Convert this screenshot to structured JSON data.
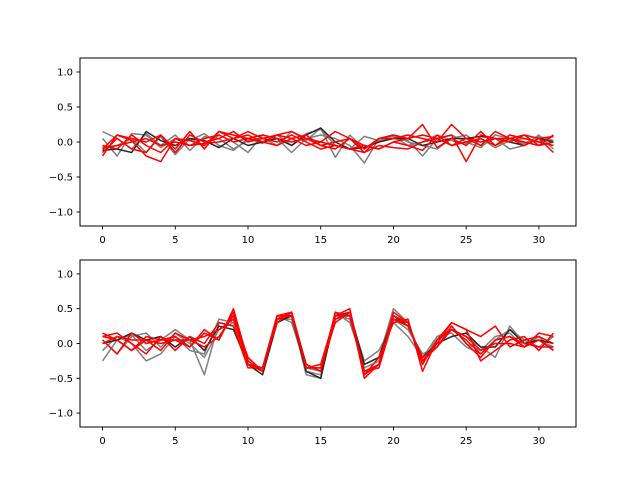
{
  "chart_data": [
    {
      "type": "line",
      "title": "",
      "xlabel": "",
      "ylabel": "",
      "xlim": [
        -1.55,
        32.55
      ],
      "ylim": [
        -1.2,
        1.2
      ],
      "xticks": [
        0,
        5,
        10,
        15,
        20,
        25,
        30
      ],
      "yticks": [
        -1.0,
        -0.5,
        0.0,
        0.5,
        1.0
      ],
      "xtick_labels": [
        "0",
        "5",
        "10",
        "15",
        "20",
        "25",
        "30"
      ],
      "ytick_labels": [
        "−1.0",
        "−0.5",
        "0.0",
        "0.5",
        "1.0"
      ],
      "grid": false,
      "series": [
        {
          "color": "#7f7f7f",
          "values": [
            0.15,
            0.05,
            -0.1,
            0.12,
            -0.05,
            0.1,
            -0.12,
            0.08,
            0.05,
            -0.1,
            0.02,
            0.06,
            -0.05,
            0.15,
            0.02,
            0.2,
            -0.22,
            0.1,
            -0.1,
            0.05,
            0.08,
            -0.05,
            0.0,
            0.1,
            0.02,
            -0.03,
            0.05,
            -0.08,
            0.02,
            0.05,
            0.0,
            0.08
          ]
        },
        {
          "color": "#7f7f7f",
          "values": [
            0.05,
            -0.2,
            0.12,
            0.1,
            -0.08,
            0.05,
            0.02,
            0.12,
            -0.05,
            -0.12,
            0.05,
            -0.02,
            0.1,
            -0.05,
            0.12,
            0.18,
            -0.05,
            -0.1,
            0.08,
            0.02,
            0.05,
            0.02,
            -0.2,
            0.05,
            0.1,
            0.0,
            -0.08,
            0.1,
            0.05,
            -0.02,
            0.08,
            0.02
          ]
        },
        {
          "color": "#7f7f7f",
          "values": [
            -0.1,
            -0.05,
            0.05,
            -0.15,
            0.08,
            -0.18,
            0.05,
            -0.05,
            0.1,
            0.0,
            -0.15,
            0.1,
            0.05,
            -0.15,
            0.05,
            0.1,
            0.05,
            -0.05,
            -0.3,
            0.05,
            0.1,
            0.0,
            -0.05,
            -0.1,
            0.05,
            0.1,
            -0.05,
            0.05,
            -0.1,
            -0.05,
            0.1,
            -0.1
          ]
        },
        {
          "color": "#262626",
          "values": [
            -0.12,
            -0.1,
            -0.15,
            0.15,
            0.02,
            -0.05,
            0.05,
            0.02,
            -0.08,
            0.05,
            -0.05,
            0.0,
            0.05,
            -0.05,
            0.1,
            0.2,
            0.0,
            -0.1,
            -0.08,
            0.0,
            0.05,
            0.05,
            -0.05,
            0.0,
            0.05,
            0.05,
            0.08,
            0.05,
            0.0,
            -0.05,
            0.05,
            0.0
          ]
        },
        {
          "color": "#ff0000",
          "values": [
            -0.2,
            0.1,
            0.02,
            -0.2,
            -0.28,
            0.05,
            0.02,
            -0.05,
            0.15,
            0.1,
            0.05,
            0.0,
            0.1,
            0.15,
            0.05,
            -0.05,
            -0.1,
            0.05,
            -0.15,
            0.05,
            0.1,
            0.05,
            0.25,
            -0.08,
            0.05,
            -0.05,
            0.15,
            -0.05,
            0.1,
            0.05,
            0.0,
            -0.05
          ]
        },
        {
          "color": "#ff0000",
          "values": [
            -0.15,
            0.05,
            -0.1,
            -0.15,
            0.1,
            -0.15,
            0.1,
            0.0,
            0.05,
            0.15,
            0.0,
            0.05,
            0.1,
            0.05,
            -0.05,
            0.0,
            0.15,
            0.05,
            -0.1,
            0.05,
            0.05,
            0.1,
            0.05,
            0.0,
            0.25,
            0.05,
            -0.05,
            0.15,
            0.05,
            0.1,
            -0.05,
            0.1
          ]
        },
        {
          "color": "#ff0000",
          "values": [
            -0.1,
            0.1,
            0.05,
            0.0,
            0.1,
            -0.1,
            0.15,
            -0.1,
            0.15,
            0.05,
            0.1,
            0.0,
            -0.05,
            0.05,
            0.1,
            -0.05,
            0.0,
            0.05,
            -0.05,
            -0.1,
            0.0,
            0.05,
            0.1,
            0.05,
            0.1,
            -0.28,
            0.1,
            0.05,
            0.05,
            -0.05,
            0.05,
            -0.15
          ]
        },
        {
          "color": "#ff0000",
          "values": [
            -0.08,
            -0.05,
            0.0,
            0.05,
            -0.05,
            0.0,
            -0.05,
            0.05,
            0.1,
            0.0,
            0.05,
            0.1,
            0.05,
            0.0,
            0.05,
            0.0,
            -0.05,
            -0.1,
            -0.05,
            -0.1,
            0.0,
            -0.05,
            -0.12,
            0.1,
            -0.05,
            0.05,
            0.0,
            0.05,
            0.0,
            0.1,
            0.05,
            0.08
          ]
        },
        {
          "color": "#ff0000",
          "values": [
            -0.05,
            -0.1,
            0.1,
            -0.05,
            -0.15,
            0.05,
            -0.05,
            -0.02,
            0.0,
            0.05,
            0.15,
            0.05,
            0.0,
            0.1,
            0.0,
            -0.1,
            -0.05,
            -0.1,
            -0.15,
            -0.05,
            -0.08,
            -0.1,
            0.0,
            0.05,
            -0.05,
            0.0,
            0.05,
            -0.05,
            0.05,
            0.0,
            -0.05,
            0.0
          ]
        }
      ]
    },
    {
      "type": "line",
      "title": "",
      "xlabel": "",
      "ylabel": "",
      "xlim": [
        -1.55,
        32.55
      ],
      "ylim": [
        -1.2,
        1.2
      ],
      "xticks": [
        0,
        5,
        10,
        15,
        20,
        25,
        30
      ],
      "yticks": [
        -1.0,
        -0.5,
        0.0,
        0.5,
        1.0
      ],
      "xtick_labels": [
        "0",
        "5",
        "10",
        "15",
        "20",
        "25",
        "30"
      ],
      "ytick_labels": [
        "−1.0",
        "−0.5",
        "0.0",
        "0.5",
        "1.0"
      ],
      "grid": false,
      "series": [
        {
          "color": "#7f7f7f",
          "values": [
            -0.25,
            0.05,
            0.12,
            -0.1,
            0.05,
            0.2,
            0.05,
            -0.45,
            0.3,
            0.25,
            -0.2,
            -0.4,
            0.3,
            0.4,
            -0.45,
            -0.5,
            0.45,
            0.3,
            -0.3,
            -0.2,
            0.5,
            0.3,
            -0.3,
            0.1,
            0.2,
            0.1,
            -0.05,
            -0.2,
            0.25,
            0.0,
            0.05,
            -0.05
          ]
        },
        {
          "color": "#7f7f7f",
          "values": [
            0.05,
            -0.15,
            0.1,
            0.15,
            -0.05,
            0.15,
            0.0,
            -0.2,
            0.2,
            0.3,
            -0.3,
            -0.35,
            0.4,
            0.3,
            -0.35,
            -0.4,
            0.4,
            0.35,
            -0.35,
            -0.25,
            0.35,
            0.2,
            -0.15,
            -0.05,
            0.25,
            0.0,
            -0.1,
            0.1,
            0.15,
            -0.05,
            0.1,
            -0.1
          ]
        },
        {
          "color": "#7f7f7f",
          "values": [
            -0.1,
            0.1,
            0.0,
            -0.25,
            -0.15,
            0.1,
            -0.1,
            -0.15,
            0.35,
            0.3,
            -0.25,
            -0.4,
            0.35,
            0.35,
            -0.4,
            -0.45,
            0.35,
            0.4,
            -0.25,
            -0.1,
            0.3,
            0.1,
            -0.2,
            0.1,
            0.15,
            -0.05,
            -0.15,
            0.05,
            0.2,
            0.05,
            -0.05,
            0.1
          ]
        },
        {
          "color": "#262626",
          "values": [
            0.0,
            0.05,
            0.15,
            0.05,
            0.1,
            -0.05,
            0.1,
            -0.1,
            0.25,
            0.2,
            -0.3,
            -0.45,
            0.3,
            0.4,
            -0.4,
            -0.5,
            0.4,
            0.45,
            -0.3,
            -0.2,
            0.4,
            0.25,
            -0.2,
            0.0,
            0.1,
            0.15,
            -0.05,
            -0.05,
            0.2,
            0.0,
            0.05,
            0.0
          ]
        },
        {
          "color": "#ff0000",
          "values": [
            0.15,
            0.05,
            -0.1,
            0.1,
            0.05,
            0.05,
            -0.05,
            0.2,
            0.05,
            0.45,
            -0.3,
            -0.4,
            0.4,
            0.45,
            -0.3,
            -0.4,
            0.35,
            0.45,
            -0.5,
            -0.3,
            0.4,
            0.3,
            -0.3,
            0.05,
            0.2,
            0.05,
            -0.15,
            0.05,
            0.1,
            -0.05,
            0.15,
            0.1
          ]
        },
        {
          "color": "#ff0000",
          "values": [
            0.1,
            0.15,
            0.0,
            -0.15,
            0.1,
            -0.1,
            0.1,
            0.0,
            0.3,
            0.25,
            -0.35,
            -0.35,
            0.3,
            0.45,
            -0.35,
            -0.3,
            0.4,
            0.5,
            -0.45,
            -0.2,
            0.3,
            0.35,
            -0.4,
            0.05,
            0.3,
            0.2,
            0.1,
            0.25,
            -0.05,
            0.05,
            0.1,
            0.0
          ]
        },
        {
          "color": "#ff0000",
          "values": [
            0.05,
            -0.15,
            0.15,
            0.0,
            0.05,
            0.1,
            -0.05,
            0.15,
            0.05,
            0.5,
            -0.25,
            -0.4,
            0.35,
            0.45,
            -0.35,
            -0.35,
            0.4,
            0.4,
            -0.4,
            -0.3,
            0.35,
            0.3,
            -0.25,
            0.0,
            0.3,
            0.2,
            -0.25,
            -0.1,
            0.05,
            0.1,
            -0.1,
            0.15
          ]
        },
        {
          "color": "#ff0000",
          "values": [
            0.1,
            0.05,
            -0.1,
            0.05,
            -0.1,
            0.15,
            0.05,
            0.1,
            0.2,
            0.35,
            -0.3,
            -0.35,
            0.4,
            0.4,
            -0.3,
            -0.4,
            0.45,
            0.4,
            -0.45,
            -0.3,
            0.45,
            0.3,
            -0.25,
            -0.05,
            0.25,
            0.0,
            -0.2,
            0.05,
            0.1,
            0.0,
            -0.05,
            -0.05
          ]
        },
        {
          "color": "#ff0000",
          "values": [
            0.0,
            0.1,
            0.05,
            0.05,
            0.0,
            0.05,
            0.05,
            -0.05,
            0.1,
            0.4,
            -0.2,
            -0.4,
            0.35,
            0.4,
            -0.35,
            -0.35,
            0.3,
            0.45,
            -0.4,
            -0.35,
            0.35,
            0.25,
            -0.2,
            -0.05,
            0.2,
            0.1,
            -0.1,
            0.0,
            0.0,
            -0.05,
            0.05,
            -0.1
          ]
        }
      ]
    }
  ]
}
